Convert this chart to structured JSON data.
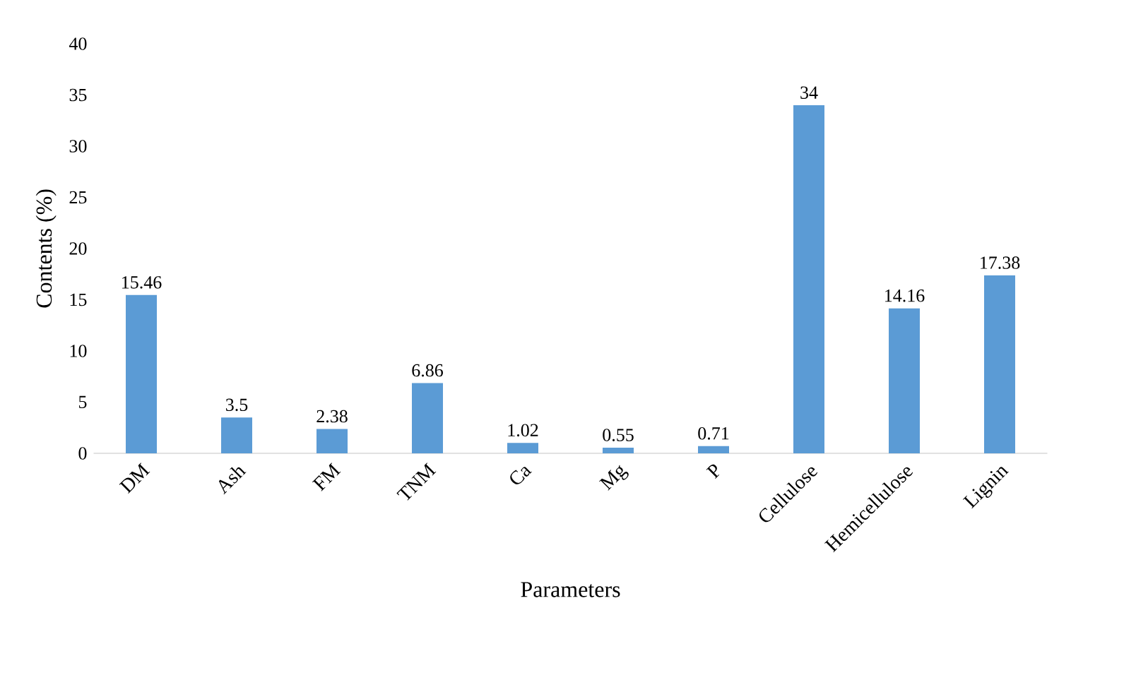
{
  "chart_data": {
    "type": "bar",
    "xlabel": "Parameters",
    "ylabel": "Contents (%)",
    "categories": [
      "DM",
      "Ash",
      "FM",
      "TNM",
      "Ca",
      "Mg",
      "P",
      "Cellulose",
      "Hemicellulose",
      "Lignin"
    ],
    "values": [
      15.46,
      3.5,
      2.38,
      6.86,
      1.02,
      0.55,
      0.71,
      34,
      14.16,
      17.38
    ],
    "color": "#5b9bd5",
    "data_labels": true,
    "ylim": [
      0,
      40
    ],
    "yticks": [
      0,
      5,
      10,
      15,
      20,
      25,
      30,
      35,
      40
    ]
  }
}
